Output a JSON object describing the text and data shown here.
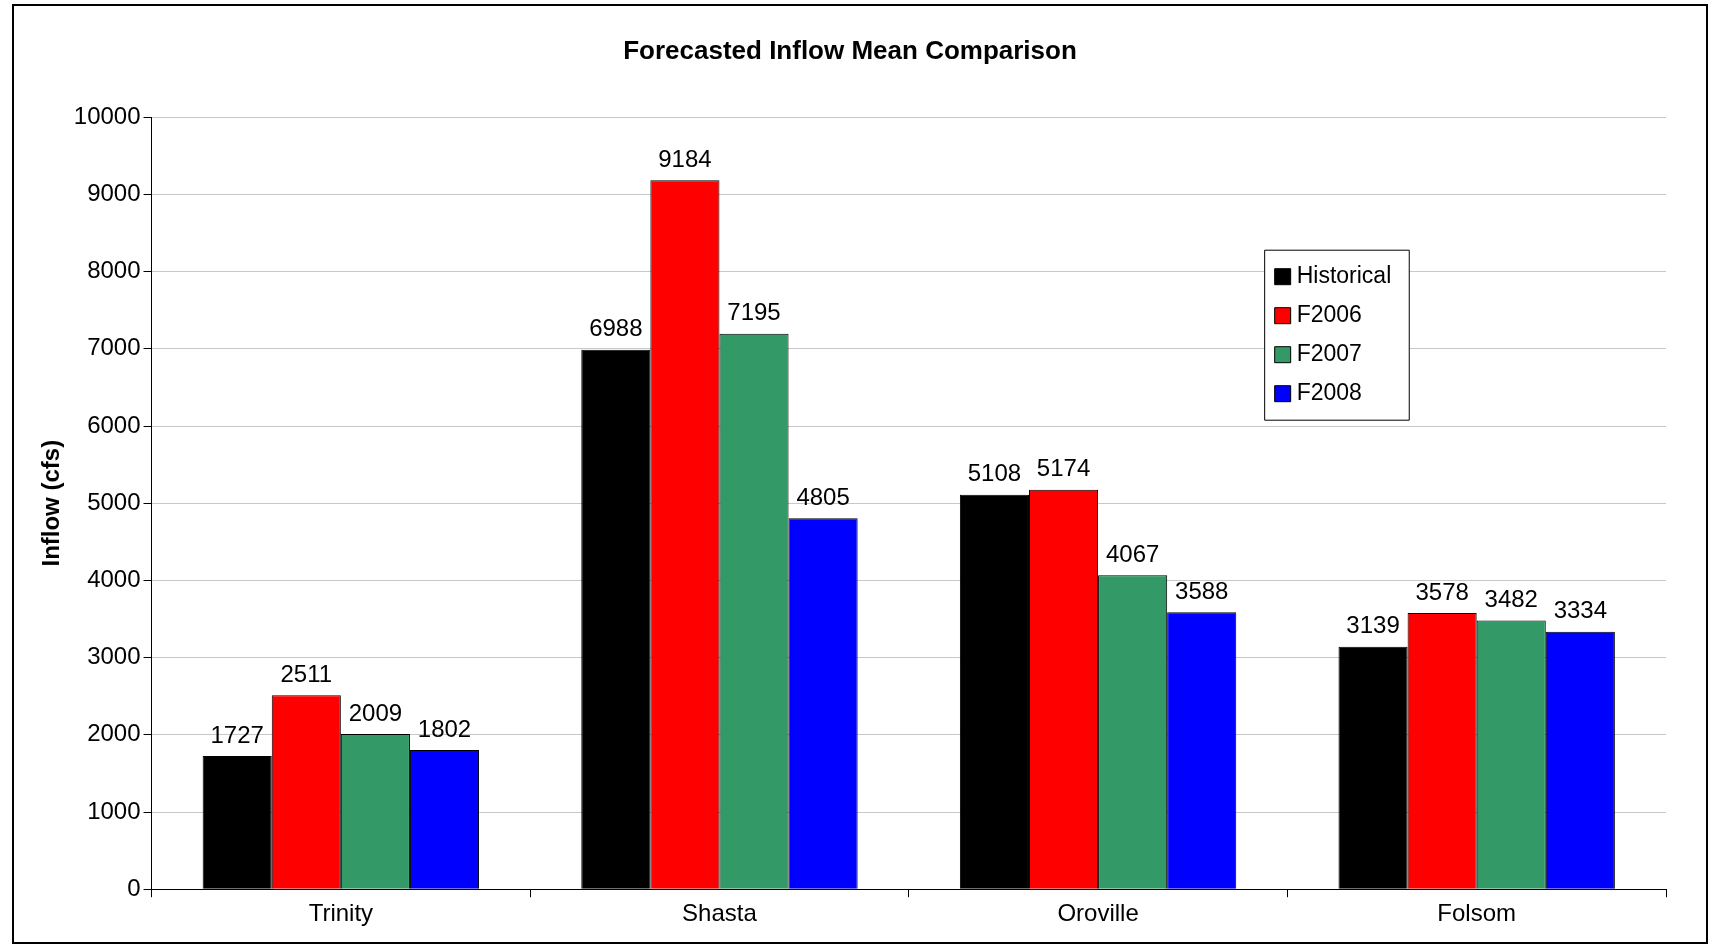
{
  "chart_data": {
    "type": "bar",
    "title": "Forecasted Inflow Mean Comparison",
    "ylabel": "Inflow (cfs)",
    "categories": [
      "Trinity",
      "Shasta",
      "Oroville",
      "Folsom"
    ],
    "series": [
      {
        "name": "Historical",
        "color": "#000000",
        "values": [
          1727,
          6988,
          5108,
          3139
        ]
      },
      {
        "name": "F2006",
        "color": "#ff0000",
        "values": [
          2511,
          9184,
          5174,
          3578
        ]
      },
      {
        "name": "F2007",
        "color": "#339966",
        "values": [
          2009,
          7195,
          4067,
          3482
        ]
      },
      {
        "name": "F2008",
        "color": "#0000ff",
        "values": [
          1802,
          4805,
          3588,
          3334
        ]
      }
    ],
    "ylim": [
      0,
      10000
    ],
    "yticks": [
      0,
      1000,
      2000,
      3000,
      4000,
      5000,
      6000,
      7000,
      8000,
      9000,
      10000
    ],
    "grid": "y",
    "legend": "top right",
    "data_labels": true
  }
}
